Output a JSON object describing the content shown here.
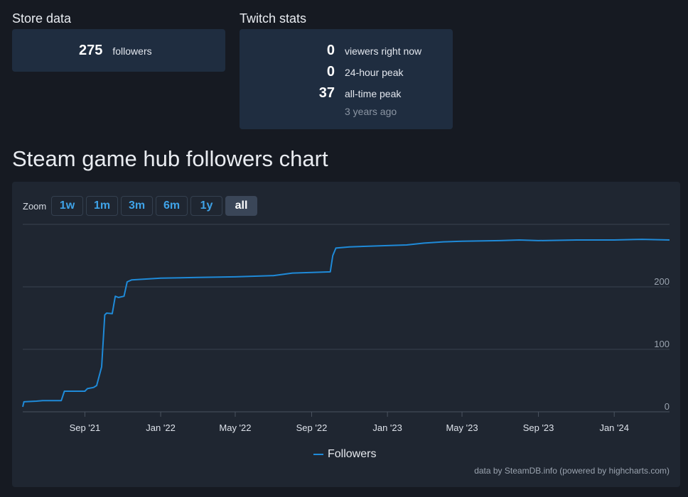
{
  "store": {
    "title": "Store data",
    "followers_value": "275",
    "followers_label": "followers"
  },
  "twitch": {
    "title": "Twitch stats",
    "viewers_value": "0",
    "viewers_label": "viewers right now",
    "peak24_value": "0",
    "peak24_label": "24-hour peak",
    "alltime_value": "37",
    "alltime_label": "all-time peak",
    "alltime_sub": "3 years ago"
  },
  "chart_section": {
    "title": "Steam game hub followers chart",
    "zoom_label": "Zoom",
    "zoom_buttons": [
      "1w",
      "1m",
      "3m",
      "6m",
      "1y",
      "all"
    ],
    "active_zoom": "all",
    "legend": "Followers",
    "credits": "data by SteamDB.info (powered by highcharts.com)",
    "line_color": "#1f8ad8"
  },
  "chart_data": {
    "type": "line",
    "title": "Steam game hub followers chart",
    "xlabel": "",
    "ylabel": "",
    "ylim": [
      0,
      300
    ],
    "y_ticks": [
      0,
      100,
      200
    ],
    "x_range": [
      "2021-05-24",
      "2024-03-30"
    ],
    "x_ticks": [
      {
        "date": "2021-09-01",
        "label": "Sep '21"
      },
      {
        "date": "2022-01-01",
        "label": "Jan '22"
      },
      {
        "date": "2022-05-01",
        "label": "May '22"
      },
      {
        "date": "2022-09-01",
        "label": "Sep '22"
      },
      {
        "date": "2023-01-01",
        "label": "Jan '23"
      },
      {
        "date": "2023-05-01",
        "label": "May '23"
      },
      {
        "date": "2023-09-01",
        "label": "Sep '23"
      },
      {
        "date": "2024-01-01",
        "label": "Jan '24"
      }
    ],
    "grid": true,
    "legend_position": "bottom-center",
    "series": [
      {
        "name": "Followers",
        "points": [
          [
            "2021-05-24",
            8
          ],
          [
            "2021-05-26",
            16
          ],
          [
            "2021-06-15",
            17
          ],
          [
            "2021-06-25",
            18
          ],
          [
            "2021-07-10",
            18
          ],
          [
            "2021-07-25",
            18
          ],
          [
            "2021-07-30",
            33
          ],
          [
            "2021-08-15",
            33
          ],
          [
            "2021-09-01",
            33
          ],
          [
            "2021-09-05",
            37
          ],
          [
            "2021-09-15",
            39
          ],
          [
            "2021-09-20",
            42
          ],
          [
            "2021-09-28",
            72
          ],
          [
            "2021-10-03",
            155
          ],
          [
            "2021-10-06",
            158
          ],
          [
            "2021-10-15",
            157
          ],
          [
            "2021-10-20",
            185
          ],
          [
            "2021-10-25",
            183
          ],
          [
            "2021-11-03",
            185
          ],
          [
            "2021-11-08",
            208
          ],
          [
            "2021-11-15",
            211
          ],
          [
            "2022-01-01",
            214
          ],
          [
            "2022-03-01",
            215
          ],
          [
            "2022-05-01",
            216
          ],
          [
            "2022-07-01",
            218
          ],
          [
            "2022-08-01",
            222
          ],
          [
            "2022-09-01",
            223
          ],
          [
            "2022-10-01",
            224
          ],
          [
            "2022-10-05",
            250
          ],
          [
            "2022-10-10",
            262
          ],
          [
            "2022-11-01",
            264
          ],
          [
            "2023-01-01",
            266
          ],
          [
            "2023-02-01",
            267
          ],
          [
            "2023-03-01",
            270
          ],
          [
            "2023-04-01",
            272
          ],
          [
            "2023-05-01",
            273
          ],
          [
            "2023-07-01",
            274
          ],
          [
            "2023-08-01",
            275
          ],
          [
            "2023-09-01",
            274
          ],
          [
            "2023-11-01",
            275
          ],
          [
            "2024-01-01",
            275
          ],
          [
            "2024-02-15",
            276
          ],
          [
            "2024-03-30",
            275
          ]
        ]
      }
    ]
  }
}
